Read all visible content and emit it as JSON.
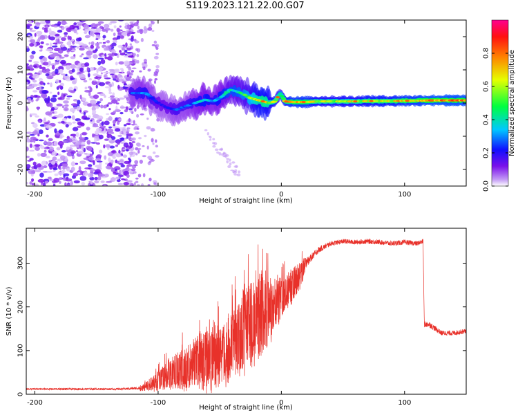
{
  "title": "S119.2023.121.22.00.G07",
  "colors": {
    "snr_line": "#e8312a",
    "axes": "#000000",
    "background": "#ffffff"
  },
  "chart_data": [
    {
      "type": "heatmap",
      "xlabel": "Height of straight line (km)",
      "ylabel": "Frequency (Hz)",
      "xlim": [
        -207,
        150
      ],
      "ylim": [
        -25,
        25
      ],
      "xticks": [
        -200,
        -100,
        0,
        100
      ],
      "yticks": [
        -20,
        -10,
        0,
        10,
        20
      ],
      "colorbar": {
        "label": "Normalized spectral amplitude",
        "range": [
          0.0,
          1.0
        ],
        "ticks": [
          0.0,
          0.2,
          0.4,
          0.6,
          0.8
        ],
        "tick_labels": [
          "0.0",
          "0.2",
          "0.4",
          "0.6",
          "0.8"
        ],
        "colormap": "rainbow (white → purple → blue → cyan → green → yellow → red → magenta)"
      },
      "features": [
        {
          "region": "noise",
          "x_range": [
            -207,
            -120
          ],
          "freq_range": [
            -25,
            25
          ],
          "amplitude": "low (0.0–0.2), scattered"
        },
        {
          "region": "emerging signal",
          "x_range": [
            -120,
            -20
          ],
          "center_freq": [
            3,
            0,
            -3,
            -1,
            1,
            5,
            4,
            0
          ],
          "amplitude": "0.1–0.4"
        },
        {
          "region": "stable signal",
          "x_range": [
            0,
            150
          ],
          "center_freq": 0.5,
          "amplitude": "0.5–0.8"
        }
      ],
      "ridge": {
        "x": [
          -122,
          -110,
          -100,
          -92,
          -85,
          -78,
          -70,
          -62,
          -55,
          -48,
          -42,
          -36,
          -30,
          -25,
          -20,
          -15,
          -10,
          -5,
          -1,
          3,
          10,
          20,
          30,
          40,
          50,
          60,
          70,
          80,
          90,
          100,
          110,
          120,
          130,
          140,
          150
        ],
        "freq": [
          3,
          3,
          0,
          -1.5,
          -2,
          -1,
          0,
          1,
          0.5,
          2,
          4,
          3.5,
          2.5,
          1.5,
          1,
          0.5,
          0,
          0.5,
          3,
          0.5,
          0.3,
          0.3,
          0.5,
          0.5,
          0.5,
          0.5,
          0.6,
          0.6,
          0.6,
          0.7,
          0.7,
          0.8,
          0.8,
          0.8,
          0.8
        ],
        "amplitude": [
          0.25,
          0.3,
          0.2,
          0.2,
          0.25,
          0.25,
          0.3,
          0.35,
          0.3,
          0.35,
          0.4,
          0.4,
          0.45,
          0.5,
          0.6,
          0.65,
          0.6,
          0.6,
          0.45,
          0.65,
          0.7,
          0.7,
          0.6,
          0.6,
          0.6,
          0.6,
          0.65,
          0.65,
          0.65,
          0.7,
          0.7,
          0.75,
          0.75,
          0.75,
          0.75
        ]
      }
    },
    {
      "type": "line",
      "xlabel": "Height of straight line (km)",
      "ylabel": "SNR (10 * v/v)",
      "xlim": [
        -207,
        150
      ],
      "ylim": [
        0,
        380
      ],
      "xticks": [
        -200,
        -100,
        0,
        100
      ],
      "yticks": [
        0,
        100,
        200,
        300
      ],
      "series": [
        {
          "x": [
            -207,
            -180,
            -150,
            -130,
            -115,
            -110,
            -100,
            -90,
            -80,
            -70,
            -60,
            -50,
            -40,
            -30,
            -20,
            -10,
            0,
            10,
            15,
            20,
            30,
            40,
            50,
            60,
            70,
            80,
            90,
            100,
            110,
            115,
            116,
            120,
            130,
            140,
            150
          ],
          "y": [
            12,
            12,
            12,
            12,
            14,
            18,
            30,
            50,
            60,
            70,
            80,
            90,
            110,
            150,
            170,
            190,
            220,
            250,
            270,
            300,
            330,
            345,
            350,
            348,
            350,
            348,
            345,
            348,
            345,
            350,
            160,
            160,
            140,
            140,
            145
          ],
          "noise_amplitude": [
            3,
            3,
            3,
            3,
            5,
            8,
            20,
            30,
            40,
            50,
            60,
            60,
            70,
            80,
            80,
            60,
            40,
            30,
            25,
            15,
            10,
            8,
            8,
            8,
            8,
            8,
            8,
            8,
            8,
            8,
            10,
            10,
            8,
            8,
            8
          ]
        }
      ]
    }
  ]
}
